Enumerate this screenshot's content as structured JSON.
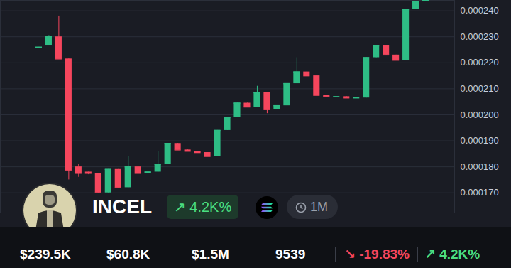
{
  "chart_data": {
    "type": "candlestick",
    "open": [
      0.0002255,
      0.0002265,
      0.00023,
      0.0002215,
      0.00018,
      0.000178,
      0.0001775,
      0.00017,
      0.000179,
      0.000172,
      0.00018,
      0.0001775,
      0.000178,
      0.000181,
      0.000189,
      0.0001865,
      0.000186,
      0.0001855,
      0.000184,
      0.000194,
      0.000199,
      0.0002045,
      0.000203,
      0.0002085,
      0.000202,
      0.0002035,
      0.000212,
      0.0002165,
      0.000215,
      0.0002075,
      0.000207,
      0.000207,
      0.0002065,
      0.0002065,
      0.000222,
      0.0002265,
      0.000223,
      0.000221,
      0.0002405,
      0.0002435
    ],
    "high": [
      0.000226,
      0.0002305,
      0.000238,
      0.0002215,
      0.000181,
      0.000178,
      0.0001775,
      0.000179,
      0.000179,
      0.000184,
      0.00018,
      0.000178,
      0.000186,
      0.000189,
      0.000189,
      0.0001865,
      0.000186,
      0.0001855,
      0.000194,
      0.000199,
      0.0002045,
      0.0002045,
      0.000211,
      0.0002085,
      0.0002035,
      0.000212,
      0.000222,
      0.0002165,
      0.000215,
      0.0002075,
      0.000207,
      0.000207,
      0.0002065,
      0.000222,
      0.0002265,
      0.0002265,
      0.000223,
      0.0002405,
      0.0002435,
      0.000245
    ],
    "low": [
      0.0002255,
      0.0002265,
      0.0002215,
      0.000175,
      0.000176,
      0.000177,
      0.00017,
      0.00017,
      0.000172,
      0.000172,
      0.0001775,
      0.0001775,
      0.000178,
      0.000181,
      0.0001865,
      0.000186,
      0.0001855,
      0.000184,
      0.000184,
      0.000194,
      0.000199,
      0.000203,
      0.000203,
      0.0002005,
      0.000202,
      0.0002035,
      0.000212,
      0.000215,
      0.0002075,
      0.000207,
      0.000207,
      0.0002065,
      0.0002065,
      0.0002065,
      0.000222,
      0.000223,
      0.000221,
      0.000221,
      0.0002405,
      0.0002435
    ],
    "close": [
      0.000226,
      0.00023,
      0.0002215,
      0.0001785,
      0.0001775,
      0.0001775,
      0.00017,
      0.000179,
      0.000172,
      0.00018,
      0.0001775,
      0.000178,
      0.000181,
      0.000189,
      0.0001865,
      0.000186,
      0.0001855,
      0.000184,
      0.000194,
      0.000199,
      0.0002045,
      0.000203,
      0.0002085,
      0.000202,
      0.0002035,
      0.000212,
      0.0002165,
      0.000215,
      0.0002075,
      0.000207,
      0.000207,
      0.0002065,
      0.0002065,
      0.000222,
      0.0002265,
      0.000223,
      0.000221,
      0.0002405,
      0.0002435,
      0.000245
    ],
    "ylim": [
      0.000162,
      0.000244
    ],
    "yticks": [
      {
        "value": 0.00017,
        "label": "0.000170"
      },
      {
        "value": 0.00018,
        "label": "0.000180"
      },
      {
        "value": 0.00019,
        "label": "0.000190"
      },
      {
        "value": 0.0002,
        "label": "0.000200"
      },
      {
        "value": 0.00021,
        "label": "0.000210"
      },
      {
        "value": 0.00022,
        "label": "0.000220"
      },
      {
        "value": 0.00023,
        "label": "0.000230"
      },
      {
        "value": 0.00024,
        "label": "0.000240"
      }
    ],
    "grid": true,
    "tick_labels": "y"
  },
  "header": {
    "title": "INCEL",
    "change": "↗ 4.2K%",
    "timeframe": "1M"
  },
  "stats": [
    "$239.5K",
    "$60.8K",
    "$1.5M",
    "9539",
    "↘ -19.83%",
    "↗ 4.2K%"
  ]
}
